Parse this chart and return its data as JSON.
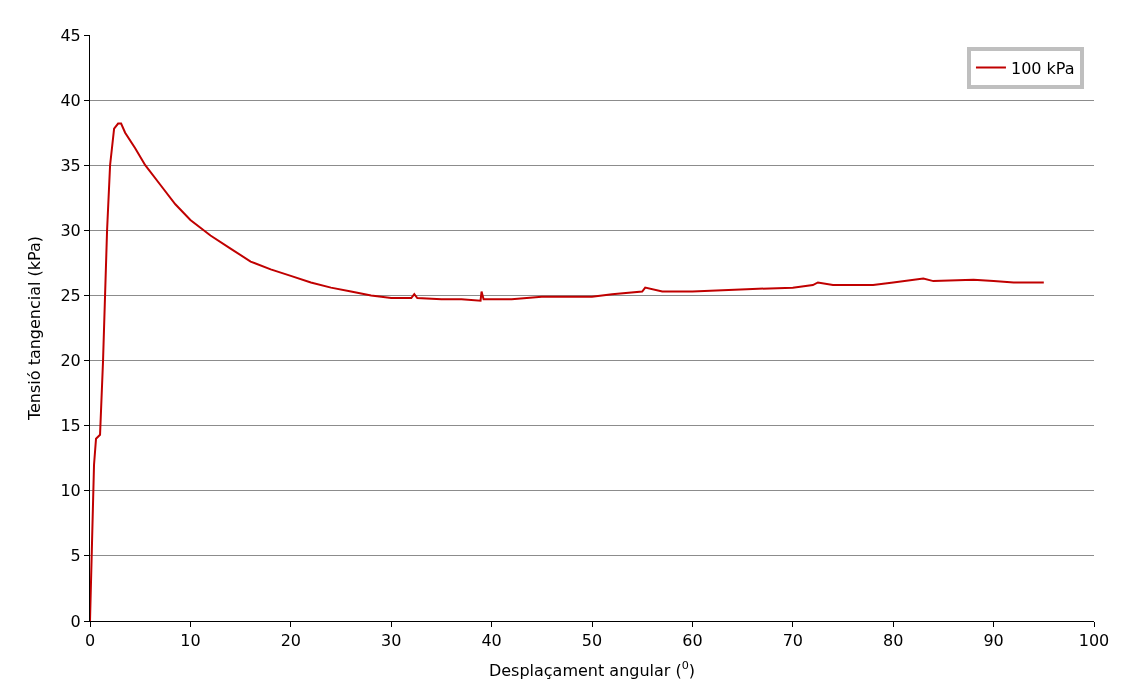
{
  "chart_data": {
    "type": "line",
    "xlabel": "Desplaçament angular ($^{0}$)",
    "ylabel": "Tensió tangencial (kPa)",
    "xlim": [
      0,
      100
    ],
    "xticks": [
      0,
      10,
      20,
      30,
      40,
      50,
      60,
      70,
      80,
      90,
      100
    ],
    "ylim": [
      0,
      45
    ],
    "yticks": [
      0,
      5,
      10,
      15,
      20,
      25,
      30,
      35,
      40,
      45
    ],
    "grid": "y",
    "legend": "top right",
    "marker": "none",
    "line_style": "solid",
    "series": [
      {
        "name": "100 kPa",
        "color": "#c00000",
        "x": [
          0,
          0.2,
          0.4,
          0.6,
          1.0,
          1.3,
          1.7,
          2.0,
          2.4,
          2.8,
          3.1,
          3.5,
          4.5,
          5.5,
          7,
          8.5,
          10,
          12,
          14,
          16,
          18,
          20,
          22,
          24,
          26,
          28,
          30,
          32,
          32.3,
          32.6,
          35,
          37,
          38.9,
          39,
          39.2,
          42,
          45,
          48,
          50,
          52,
          55,
          55.3,
          57,
          60,
          63,
          66,
          70,
          72,
          72.5,
          74,
          78,
          80,
          83,
          84,
          88,
          90,
          92,
          95
        ],
        "values": [
          0,
          6,
          12,
          14,
          14.3,
          20,
          30,
          35,
          37.8,
          38.2,
          38.2,
          37.5,
          36.3,
          35,
          33.5,
          32,
          30.8,
          29.6,
          28.6,
          27.6,
          27,
          26.5,
          26,
          25.6,
          25.3,
          25.0,
          24.8,
          24.8,
          25.1,
          24.8,
          24.7,
          24.7,
          24.6,
          25.3,
          24.7,
          24.7,
          24.9,
          24.9,
          24.9,
          25.1,
          25.3,
          25.6,
          25.3,
          25.3,
          25.4,
          25.5,
          25.6,
          25.8,
          26.0,
          25.8,
          25.8,
          26.0,
          26.3,
          26.1,
          26.2,
          26.1,
          26.0,
          26.0
        ]
      }
    ]
  }
}
